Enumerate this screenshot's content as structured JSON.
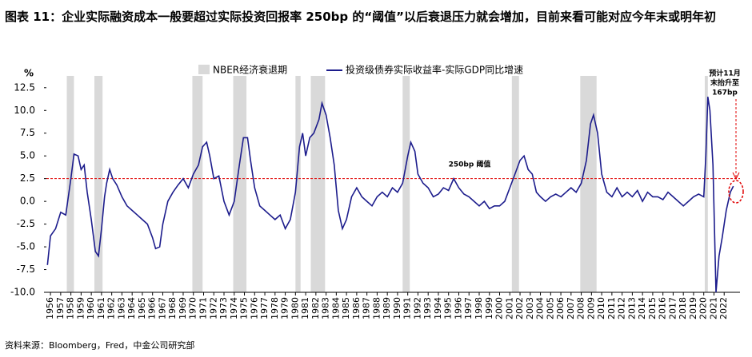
{
  "chart_data": {
    "type": "line",
    "title": "图表 11：企业实际融资成本一般要超过实际投资回报率 250bp 的“阈值”以后衰退压力就会增加，目前来看可能对应今年末或明年初",
    "y_unit": "%",
    "source": "资料来源：Bloomberg，Fred，中金公司研究部",
    "recession_name": "NBER经济衰退期",
    "recession_color": "#d9d9d9",
    "recessions": [
      [
        1957.6,
        1958.3
      ],
      [
        1960.3,
        1961.1
      ],
      [
        1969.9,
        1970.9
      ],
      [
        1973.9,
        1975.2
      ],
      [
        1980.0,
        1980.5
      ],
      [
        1981.5,
        1982.9
      ],
      [
        1990.5,
        1991.2
      ],
      [
        2001.2,
        2001.9
      ],
      [
        2007.9,
        2009.5
      ],
      [
        2020.1,
        2020.4
      ]
    ],
    "threshold": {
      "value": 2.5,
      "label": "250bp 阈值",
      "color": "#e00000"
    },
    "annotation": [
      "预计11月",
      "末抬升至",
      "167bp"
    ],
    "x": [
      1955.7,
      1956.0,
      1956.5,
      1957.0,
      1957.5,
      1958.0,
      1958.3,
      1958.7,
      1959.0,
      1959.3,
      1959.6,
      1960.0,
      1960.4,
      1960.7,
      1961.0,
      1961.3,
      1961.5,
      1961.8,
      1962.1,
      1962.5,
      1963.0,
      1963.5,
      1964.0,
      1964.5,
      1965.0,
      1965.5,
      1966.0,
      1966.3,
      1966.7,
      1967.0,
      1967.5,
      1968.0,
      1968.5,
      1969.0,
      1969.5,
      1970.0,
      1970.5,
      1970.9,
      1971.3,
      1971.6,
      1972.0,
      1972.5,
      1973.0,
      1973.5,
      1974.0,
      1974.5,
      1974.9,
      1975.3,
      1975.6,
      1976.0,
      1976.5,
      1977.0,
      1977.5,
      1978.0,
      1978.5,
      1979.0,
      1979.5,
      1980.0,
      1980.4,
      1980.7,
      1981.0,
      1981.4,
      1981.8,
      1982.3,
      1982.6,
      1983.0,
      1983.4,
      1983.8,
      1984.2,
      1984.6,
      1985.0,
      1985.5,
      1986.0,
      1986.5,
      1987.0,
      1987.5,
      1988.0,
      1988.5,
      1989.0,
      1989.5,
      1990.0,
      1990.5,
      1991.0,
      1991.3,
      1991.7,
      1992.0,
      1992.5,
      1993.0,
      1993.5,
      1994.0,
      1994.5,
      1995.0,
      1995.5,
      1996.0,
      1996.5,
      1997.0,
      1997.5,
      1998.0,
      1998.5,
      1999.0,
      1999.5,
      2000.0,
      2000.5,
      2001.0,
      2001.5,
      2002.0,
      2002.4,
      2002.8,
      2003.2,
      2003.6,
      2004.0,
      2004.5,
      2005.0,
      2005.5,
      2006.0,
      2006.5,
      2007.0,
      2007.5,
      2008.0,
      2008.5,
      2008.9,
      2009.2,
      2009.6,
      2010.0,
      2010.5,
      2011.0,
      2011.5,
      2012.0,
      2012.5,
      2013.0,
      2013.5,
      2014.0,
      2014.5,
      2015.0,
      2015.5,
      2016.0,
      2016.5,
      2017.0,
      2017.5,
      2018.0,
      2018.5,
      2019.0,
      2019.5,
      2020.0,
      2020.2,
      2020.4,
      2020.6,
      2020.9,
      2021.2,
      2021.5,
      2021.8,
      2022.2,
      2022.6,
      2022.9
    ],
    "series": [
      {
        "name": "投资级债券实际收益率-实际GDP同比增速",
        "color": "#1c1c8c",
        "values": [
          -7.0,
          -3.8,
          -3.0,
          -1.2,
          -1.5,
          2.5,
          5.2,
          5.0,
          3.5,
          4.0,
          1.0,
          -2.0,
          -5.5,
          -6.0,
          -3.0,
          0.5,
          2.0,
          3.5,
          2.5,
          1.8,
          0.5,
          -0.5,
          -1.0,
          -1.5,
          -2.0,
          -2.5,
          -4.0,
          -5.2,
          -5.0,
          -2.5,
          0.0,
          1.0,
          1.8,
          2.5,
          1.5,
          3.0,
          4.0,
          6.0,
          6.5,
          5.0,
          2.5,
          2.8,
          0.0,
          -1.5,
          0.0,
          4.0,
          7.0,
          7.0,
          4.5,
          1.5,
          -0.5,
          -1.0,
          -1.5,
          -2.0,
          -1.5,
          -3.0,
          -2.0,
          1.0,
          6.0,
          7.5,
          5.0,
          7.0,
          7.5,
          9.0,
          10.8,
          9.5,
          7.0,
          4.0,
          -1.0,
          -3.0,
          -2.0,
          0.5,
          1.5,
          0.5,
          0.0,
          -0.5,
          0.5,
          1.0,
          0.5,
          1.5,
          1.0,
          2.0,
          5.0,
          6.5,
          5.5,
          3.0,
          2.0,
          1.5,
          0.5,
          0.8,
          1.5,
          1.2,
          2.5,
          1.5,
          0.8,
          0.5,
          0.0,
          -0.5,
          0.0,
          -0.8,
          -0.5,
          -0.5,
          0.0,
          1.5,
          3.0,
          4.5,
          5.0,
          3.5,
          3.0,
          1.0,
          0.5,
          0.0,
          0.5,
          0.8,
          0.5,
          1.0,
          1.5,
          1.0,
          2.0,
          4.5,
          8.5,
          9.5,
          7.5,
          3.0,
          1.0,
          0.5,
          1.5,
          0.5,
          1.0,
          0.5,
          1.2,
          0.0,
          1.0,
          0.5,
          0.5,
          0.2,
          1.0,
          0.5,
          0.0,
          -0.5,
          0.0,
          0.5,
          0.8,
          0.5,
          5.0,
          11.5,
          10.0,
          4.0,
          -10.0,
          -6.0,
          -4.0,
          -1.0,
          1.0,
          1.67
        ]
      }
    ],
    "xlim": [
      1955.6,
      2023.55
    ],
    "xticks": [
      1956,
      1957,
      1958,
      1959,
      1960,
      1961,
      1962,
      1963,
      1964,
      1965,
      1966,
      1967,
      1968,
      1969,
      1970,
      1971,
      1972,
      1973,
      1974,
      1975,
      1976,
      1977,
      1978,
      1979,
      1980,
      1981,
      1982,
      1983,
      1984,
      1985,
      1986,
      1987,
      1988,
      1989,
      1990,
      1991,
      1992,
      1993,
      1994,
      1995,
      1996,
      1997,
      1998,
      1999,
      2000,
      2001,
      2002,
      2003,
      2004,
      2005,
      2006,
      2007,
      2008,
      2009,
      2010,
      2011,
      2012,
      2013,
      2014,
      2015,
      2016,
      2017,
      2018,
      2019,
      2020,
      2021,
      2022
    ],
    "ylim": [
      -10,
      13.8
    ],
    "yticks": [
      12.5,
      {
        "value": 10,
        "label": "10.0"
      },
      7.5,
      {
        "value": 5,
        "label": "5.0"
      },
      2.5,
      {
        "value": 0,
        "label": "0.0"
      },
      -2.5,
      {
        "value": -5,
        "label": "-5.0"
      },
      -7.5,
      {
        "value": -10,
        "label": "-10.0"
      }
    ],
    "grid": false
  }
}
